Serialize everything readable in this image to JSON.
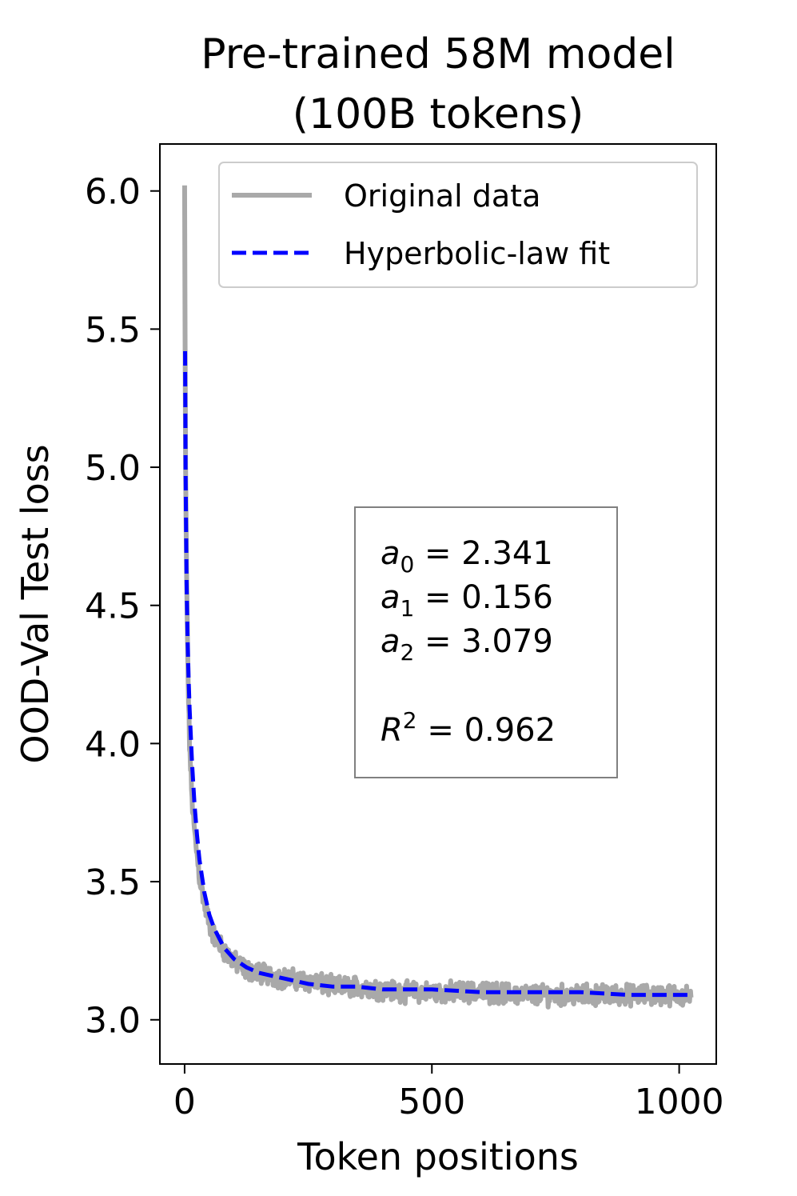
{
  "chart_data": {
    "type": "line",
    "title": "Pre-trained 58M model",
    "subtitle": "(100B tokens)",
    "xlabel": "Token positions",
    "ylabel": "OOD-Val Test loss",
    "xlim": [
      -50,
      1075
    ],
    "ylim": [
      2.84,
      6.17
    ],
    "xticks": [
      0,
      500,
      1000
    ],
    "xtick_labels": [
      "0",
      "500",
      "1000"
    ],
    "yticks": [
      3.0,
      3.5,
      4.0,
      4.5,
      5.0,
      5.5,
      6.0
    ],
    "ytick_labels": [
      "3.0",
      "3.5",
      "4.0",
      "4.5",
      "5.0",
      "5.5",
      "6.0"
    ],
    "grid": false,
    "legend_position": "upper-right",
    "series": [
      {
        "name": "Original data",
        "color": "#a9a9a9",
        "style": "solid",
        "x": [
          0,
          1,
          2,
          4,
          6,
          8,
          10,
          15,
          20,
          25,
          30,
          40,
          50,
          60,
          80,
          100,
          125,
          150,
          200,
          250,
          300,
          350,
          400,
          450,
          500,
          600,
          700,
          800,
          900,
          1000,
          1024
        ],
        "y": [
          6.02,
          5.45,
          5.0,
          4.6,
          4.35,
          4.15,
          4.0,
          3.8,
          3.68,
          3.6,
          3.52,
          3.42,
          3.35,
          3.3,
          3.25,
          3.21,
          3.18,
          3.17,
          3.15,
          3.14,
          3.12,
          3.12,
          3.11,
          3.1,
          3.1,
          3.1,
          3.09,
          3.09,
          3.09,
          3.09,
          3.08
        ]
      },
      {
        "name": "Hyperbolic-law fit",
        "color": "#0000ff",
        "style": "dashed",
        "x": [
          1,
          2,
          4,
          6,
          8,
          10,
          15,
          20,
          25,
          30,
          40,
          50,
          60,
          80,
          100,
          125,
          150,
          200,
          250,
          300,
          350,
          400,
          450,
          500,
          600,
          700,
          800,
          900,
          1000,
          1024
        ],
        "y": [
          5.42,
          4.98,
          4.58,
          4.38,
          4.24,
          4.13,
          3.93,
          3.78,
          3.67,
          3.58,
          3.46,
          3.38,
          3.33,
          3.26,
          3.22,
          3.19,
          3.17,
          3.15,
          3.13,
          3.12,
          3.12,
          3.11,
          3.11,
          3.11,
          3.1,
          3.1,
          3.1,
          3.09,
          3.09,
          3.09
        ]
      }
    ],
    "annotation": {
      "lines": [
        {
          "sym": "a",
          "sub": "0",
          "sup": "",
          "eq": " = 2.341"
        },
        {
          "sym": "a",
          "sub": "1",
          "sup": "",
          "eq": " = 0.156"
        },
        {
          "sym": "a",
          "sub": "2",
          "sup": "",
          "eq": " = 3.079"
        },
        {
          "sym": "R",
          "sub": "",
          "sup": "2",
          "eq": " = 0.962"
        }
      ]
    }
  },
  "colors": {
    "original": "#a9a9a9",
    "fit": "#0000ff",
    "annotation_border": "#808080",
    "legend_border": "#cccccc"
  }
}
